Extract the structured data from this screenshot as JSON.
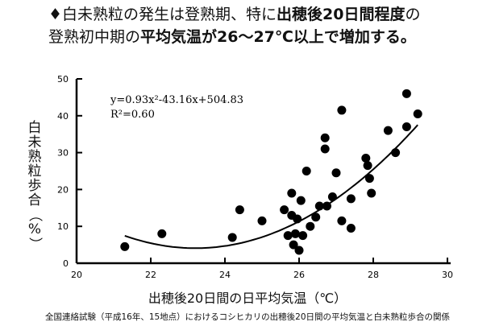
{
  "headline": {
    "line1": [
      {
        "text": "♦白未熟粒の発生は登熟期、特に",
        "bold": false
      },
      {
        "text": "出穂後20日間程度",
        "bold": true
      },
      {
        "text": "の",
        "bold": false
      }
    ],
    "line2": [
      {
        "text": "登熟初中期の",
        "bold": false
      },
      {
        "text": "平均気温が26～27℃以上で増加する。",
        "bold": true
      }
    ]
  },
  "caption": "全国連絡試験（平成16年、15地点）におけるコシヒカリの出穂後20日間の平均気温と白未熟粒歩合の関係",
  "chart_data": {
    "type": "scatter",
    "title": "",
    "xlabel": "出穂後20日間の日平均気温（℃）",
    "ylabel": "白未熟粒歩合（%）",
    "xlim": [
      20,
      30
    ],
    "ylim": [
      0,
      50
    ],
    "x_ticks": [
      "20",
      "22",
      "24",
      "26",
      "28",
      "30"
    ],
    "y_ticks": [
      "0",
      "10",
      "20",
      "30",
      "40",
      "50"
    ],
    "grid": false,
    "equation": "y=0.93x²-43.16x+504.83",
    "r2": "R²=0.60",
    "fit": {
      "a": 0.93,
      "b": -43.16,
      "c": 504.83,
      "x_range": [
        21.3,
        29.2
      ]
    },
    "points": [
      {
        "x": 21.3,
        "y": 4.5
      },
      {
        "x": 22.3,
        "y": 8
      },
      {
        "x": 24.2,
        "y": 7
      },
      {
        "x": 24.4,
        "y": 14.5
      },
      {
        "x": 25.0,
        "y": 11.5
      },
      {
        "x": 25.6,
        "y": 14.5
      },
      {
        "x": 25.7,
        "y": 7.5
      },
      {
        "x": 25.8,
        "y": 13
      },
      {
        "x": 25.8,
        "y": 19
      },
      {
        "x": 25.85,
        "y": 5
      },
      {
        "x": 25.9,
        "y": 8
      },
      {
        "x": 25.95,
        "y": 12
      },
      {
        "x": 26.0,
        "y": 3.5
      },
      {
        "x": 26.05,
        "y": 17
      },
      {
        "x": 26.1,
        "y": 7.5
      },
      {
        "x": 26.2,
        "y": 25
      },
      {
        "x": 26.3,
        "y": 10
      },
      {
        "x": 26.45,
        "y": 12.5
      },
      {
        "x": 26.55,
        "y": 15.5
      },
      {
        "x": 26.7,
        "y": 31
      },
      {
        "x": 26.7,
        "y": 34
      },
      {
        "x": 26.75,
        "y": 15.5
      },
      {
        "x": 26.9,
        "y": 18
      },
      {
        "x": 27.0,
        "y": 24.5
      },
      {
        "x": 27.15,
        "y": 11.5
      },
      {
        "x": 27.15,
        "y": 41.5
      },
      {
        "x": 27.4,
        "y": 9.5
      },
      {
        "x": 27.4,
        "y": 17.5
      },
      {
        "x": 27.8,
        "y": 28.5
      },
      {
        "x": 27.85,
        "y": 26.5
      },
      {
        "x": 27.9,
        "y": 23
      },
      {
        "x": 27.95,
        "y": 19
      },
      {
        "x": 28.4,
        "y": 36
      },
      {
        "x": 28.6,
        "y": 30
      },
      {
        "x": 28.9,
        "y": 37
      },
      {
        "x": 28.9,
        "y": 46
      },
      {
        "x": 29.2,
        "y": 40.5
      }
    ]
  }
}
